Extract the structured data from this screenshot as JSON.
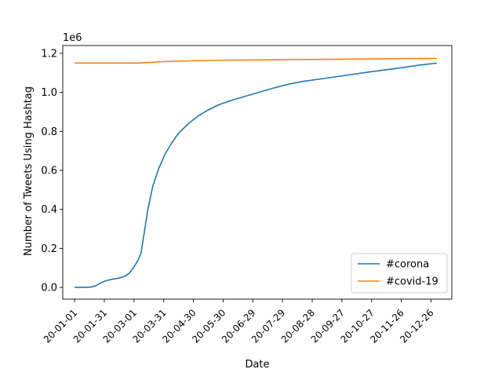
{
  "chart_data": {
    "type": "line",
    "title": "",
    "xlabel": "Date",
    "ylabel": "Number of Tweets Using Hashtag",
    "offset_label": "1e6",
    "x_ticks": [
      "20-01-01",
      "20-01-31",
      "20-03-01",
      "20-03-31",
      "20-04-30",
      "20-05-30",
      "20-06-29",
      "20-07-29",
      "20-08-28",
      "20-09-27",
      "20-10-27",
      "20-11-26",
      "20-12-26"
    ],
    "y_ticks": [
      "0.0",
      "0.2",
      "0.4",
      "0.6",
      "0.8",
      "1.0",
      "1.2"
    ],
    "xlim": [
      "2019-12-20",
      "2021-01-16"
    ],
    "ylim": [
      -0.06,
      1.24
    ],
    "y_scale_multiplier": 1000000,
    "grid": false,
    "legend_position": "lower-right",
    "series": [
      {
        "name": "#corona",
        "color": "#1f77b4",
        "points": [
          [
            "2020-01-01",
            0.0
          ],
          [
            "2020-01-10",
            0.0
          ],
          [
            "2020-01-18",
            0.002
          ],
          [
            "2020-01-23",
            0.01
          ],
          [
            "2020-01-28",
            0.025
          ],
          [
            "2020-02-02",
            0.035
          ],
          [
            "2020-02-08",
            0.042
          ],
          [
            "2020-02-15",
            0.048
          ],
          [
            "2020-02-21",
            0.058
          ],
          [
            "2020-02-25",
            0.072
          ],
          [
            "2020-03-01",
            0.105
          ],
          [
            "2020-03-05",
            0.14
          ],
          [
            "2020-03-08",
            0.175
          ],
          [
            "2020-03-11",
            0.27
          ],
          [
            "2020-03-15",
            0.4
          ],
          [
            "2020-03-20",
            0.52
          ],
          [
            "2020-03-26",
            0.61
          ],
          [
            "2020-04-01",
            0.68
          ],
          [
            "2020-04-08",
            0.74
          ],
          [
            "2020-04-15",
            0.79
          ],
          [
            "2020-04-25",
            0.84
          ],
          [
            "2020-05-05",
            0.88
          ],
          [
            "2020-05-15",
            0.91
          ],
          [
            "2020-05-25",
            0.935
          ],
          [
            "2020-06-05",
            0.955
          ],
          [
            "2020-06-20",
            0.978
          ],
          [
            "2020-07-05",
            1.0
          ],
          [
            "2020-07-20",
            1.022
          ],
          [
            "2020-08-05",
            1.043
          ],
          [
            "2020-08-20",
            1.057
          ],
          [
            "2020-09-10",
            1.072
          ],
          [
            "2020-10-01",
            1.087
          ],
          [
            "2020-10-25",
            1.105
          ],
          [
            "2020-11-20",
            1.122
          ],
          [
            "2020-12-15",
            1.14
          ],
          [
            "2021-01-01",
            1.15
          ]
        ]
      },
      {
        "name": "#covid-19",
        "color": "#ff7f0e",
        "points": [
          [
            "2020-01-01",
            1.15
          ],
          [
            "2020-02-01",
            1.15
          ],
          [
            "2020-03-05",
            1.15
          ],
          [
            "2020-04-01",
            1.158
          ],
          [
            "2020-05-01",
            1.162
          ],
          [
            "2020-06-01",
            1.165
          ],
          [
            "2020-07-15",
            1.167
          ],
          [
            "2020-09-01",
            1.169
          ],
          [
            "2020-10-15",
            1.171
          ],
          [
            "2020-12-01",
            1.173
          ],
          [
            "2021-01-01",
            1.174
          ]
        ]
      }
    ]
  }
}
